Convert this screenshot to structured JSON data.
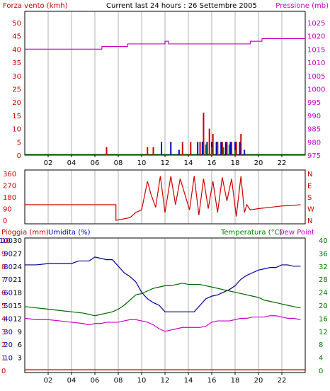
{
  "colors": {
    "background": "#ffffff",
    "frame": "#000000",
    "vertical_grid": "#d8d8d8",
    "wind_axis": "#cc0000",
    "pressure_axis": "#cc00cc",
    "wind_direction_axis": "#cc0000",
    "rain_axis": "#cc0000",
    "humidity_axis": "#0000cc",
    "temperature_axis": "#008000",
    "dewpoint_axis": "#cc00cc",
    "pressure_line": "#cc00cc",
    "wind_gust": "#cc0000",
    "wind_speed": "#0000cc",
    "wind_average": "#008000",
    "direction_line": "#cc0000",
    "humidity_line": "#000099",
    "temperature_line": "#006600",
    "dewpoint_line": "#cc00cc",
    "rain_line": "#cc0000"
  },
  "header": {
    "left_label": "Forza vento (kmh)",
    "center_title": "Current last 24 hours : 26 Settembre 2005",
    "right_label": "Pressione (mb)"
  },
  "panel3_labels": {
    "rain": "Pioggia (mm)",
    "humidity": "Umidita (%)",
    "temperature": "Temperatura (°C)",
    "dewpoint": "Dew Point"
  },
  "x_axis": {
    "hours": [
      "02",
      "04",
      "06",
      "08",
      "10",
      "12",
      "14",
      "16",
      "18",
      "20",
      "22"
    ],
    "range_hours": [
      0,
      24
    ]
  },
  "chart_data": [
    {
      "type": "line",
      "title": "Current last 24 hours : 26 Settembre 2005",
      "left_axis": {
        "label": "Forza vento (kmh)",
        "ticks": [
          "0",
          "5",
          "10",
          "15",
          "20",
          "25",
          "30",
          "35",
          "40",
          "45",
          "50"
        ],
        "range": [
          0,
          50
        ]
      },
      "right_axis": {
        "label": "Pressione (mb)",
        "ticks": [
          "975",
          "980",
          "985",
          "990",
          "995",
          "1000",
          "1005",
          "1010",
          "1015",
          "1020",
          "1025"
        ],
        "range": [
          975,
          1025
        ]
      },
      "series": [
        {
          "name": "Pressione (mb)",
          "axis": "right",
          "x": [
            0,
            4.5,
            6.3,
            6.6,
            8.5,
            8.8,
            11.8,
            12.0,
            12.3,
            19.0,
            19.3,
            20.0,
            20.3,
            24.0
          ],
          "y": [
            1015,
            1015,
            1015,
            1016,
            1016,
            1017,
            1017,
            1018,
            1017,
            1017,
            1018,
            1018,
            1019,
            1019
          ]
        },
        {
          "name": "gust",
          "axis": "left",
          "x": [
            7.0,
            10.5,
            11.0,
            13.5,
            14.2,
            15.0,
            15.3,
            15.8,
            16.1,
            16.5,
            16.9,
            17.3,
            17.7,
            18.1,
            18.5
          ],
          "y": [
            3,
            3,
            3,
            5,
            5,
            5,
            16,
            10,
            8,
            5,
            5,
            5,
            5,
            5,
            8
          ]
        },
        {
          "name": "speed",
          "axis": "left",
          "x": [
            11.7,
            12.5,
            13.2,
            14.8,
            15.2,
            15.6,
            16.0,
            16.4,
            16.8,
            17.2,
            17.6,
            18.0,
            18.4,
            18.8
          ],
          "y": [
            5,
            5,
            2,
            5,
            5,
            5,
            5,
            5,
            5,
            5,
            5,
            5,
            5,
            2
          ]
        },
        {
          "name": "average",
          "axis": "left",
          "x": [
            15.5,
            16.0,
            16.5,
            17.0,
            17.5,
            18.0
          ],
          "y": [
            4,
            3,
            4,
            3,
            4,
            2
          ]
        }
      ]
    },
    {
      "type": "line",
      "left_axis": {
        "ticks": [
          "0",
          "90",
          "180",
          "270",
          "360"
        ],
        "range": [
          0,
          360
        ]
      },
      "right_axis": {
        "ticks": [
          "N",
          "E",
          "S",
          "W",
          "N"
        ]
      },
      "series": [
        {
          "name": "direction",
          "x": [
            0,
            7.8,
            7.8,
            9.0,
            9.5,
            10.0,
            10.5,
            10.8,
            11.2,
            11.6,
            12.0,
            12.5,
            12.9,
            13.3,
            13.7,
            14.1,
            14.5,
            14.9,
            15.3,
            15.7,
            16.1,
            16.5,
            16.9,
            17.3,
            17.7,
            18.1,
            18.5,
            18.8,
            19.0,
            19.3,
            20.0,
            21.0,
            22.0,
            23.0,
            23.6
          ],
          "y": [
            120,
            120,
            0,
            20,
            60,
            80,
            300,
            200,
            100,
            340,
            60,
            340,
            120,
            320,
            200,
            80,
            340,
            40,
            320,
            90,
            300,
            60,
            330,
            150,
            320,
            30,
            340,
            60,
            120,
            80,
            90,
            100,
            110,
            115,
            120
          ]
        }
      ]
    },
    {
      "type": "line",
      "left_axis_rain": {
        "label": "Pioggia (mm)",
        "ticks": [
          "0",
          "1",
          "2",
          "3",
          "4",
          "5",
          "6",
          "7",
          "8",
          "9",
          "10"
        ],
        "range": [
          0,
          10
        ]
      },
      "left_axis_humidity": {
        "label": "Umidita (%)",
        "ticks": [
          "0",
          "10",
          "20",
          "30",
          "40",
          "50",
          "60",
          "70",
          "80",
          "90",
          "100"
        ],
        "range": [
          0,
          100
        ]
      },
      "left_axis_temp_mirror": {
        "ticks": [
          "0",
          "3",
          "6",
          "9",
          "12",
          "15",
          "18",
          "21",
          "24",
          "27",
          "30"
        ],
        "range": [
          0,
          30
        ]
      },
      "right_axis": {
        "label": "Temperatura (°C)",
        "ticks": [
          "0",
          "4",
          "8",
          "12",
          "16",
          "20",
          "24",
          "28",
          "32",
          "36",
          "40"
        ],
        "range": [
          0,
          40
        ]
      },
      "series": [
        {
          "name": "Umidita (%)",
          "axis": "humidity",
          "x": [
            0,
            1.0,
            2.0,
            3.0,
            4.0,
            4.6,
            5.0,
            5.5,
            6.0,
            6.5,
            7.0,
            7.5,
            8.0,
            8.5,
            9.0,
            9.5,
            10.0,
            10.5,
            11.0,
            11.5,
            12.0,
            12.5,
            13.0,
            13.5,
            14.0,
            14.5,
            15.0,
            15.5,
            16.0,
            16.5,
            17.0,
            17.5,
            18.0,
            18.5,
            19.0,
            19.5,
            20.0,
            20.5,
            21.0,
            21.5,
            22.0,
            22.5,
            23.0,
            23.6
          ],
          "y": [
            81,
            81,
            82,
            82,
            82,
            84,
            84,
            84,
            87,
            86,
            85,
            85,
            80,
            75,
            72,
            68,
            60,
            55,
            52,
            50,
            45,
            45,
            45,
            45,
            45,
            45,
            50,
            55,
            57,
            58,
            60,
            62,
            65,
            70,
            73,
            75,
            77,
            78,
            79,
            79,
            81,
            81,
            80,
            80
          ]
        },
        {
          "name": "Temperatura (°C)",
          "axis": "temperature",
          "x": [
            0,
            1.0,
            2.0,
            3.0,
            4.0,
            5.0,
            5.5,
            6.0,
            6.5,
            7.0,
            7.5,
            8.0,
            8.5,
            9.0,
            9.5,
            10.0,
            10.5,
            11.0,
            11.5,
            12.0,
            12.5,
            13.0,
            13.5,
            14.0,
            14.5,
            15.0,
            15.5,
            16.0,
            16.5,
            17.0,
            17.5,
            18.0,
            18.5,
            19.0,
            19.5,
            20.0,
            20.5,
            21.0,
            21.5,
            22.0,
            22.5,
            23.0,
            23.6
          ],
          "y": [
            19.6,
            19.2,
            18.8,
            18.4,
            18.0,
            17.6,
            17.2,
            16.8,
            17.2,
            17.6,
            18.0,
            18.8,
            20.0,
            21.6,
            23.2,
            23.6,
            24.4,
            25.2,
            25.6,
            26.0,
            26.0,
            26.4,
            26.8,
            26.4,
            26.4,
            26.4,
            26.0,
            25.6,
            25.2,
            24.8,
            24.4,
            24.0,
            23.6,
            23.2,
            22.8,
            22.4,
            21.6,
            21.2,
            20.8,
            20.4,
            20.0,
            19.6,
            19.2
          ]
        },
        {
          "name": "Dew Point",
          "axis": "temperature",
          "x": [
            0,
            1.0,
            2.0,
            3.0,
            4.0,
            5.0,
            5.5,
            6.0,
            6.5,
            7.0,
            7.5,
            8.0,
            8.5,
            9.0,
            9.5,
            10.0,
            10.5,
            11.0,
            11.5,
            12.0,
            12.5,
            13.0,
            13.5,
            14.0,
            14.5,
            15.0,
            15.5,
            16.0,
            16.5,
            17.0,
            17.5,
            18.0,
            18.5,
            19.0,
            19.5,
            20.0,
            20.5,
            21.0,
            21.5,
            22.0,
            22.5,
            23.0,
            23.6
          ],
          "y": [
            16.0,
            15.6,
            15.6,
            15.2,
            14.8,
            14.4,
            14.0,
            14.4,
            14.4,
            14.8,
            14.8,
            14.8,
            15.2,
            15.6,
            15.6,
            15.2,
            14.8,
            14.0,
            12.8,
            12.0,
            12.4,
            12.8,
            13.2,
            13.2,
            13.2,
            13.2,
            13.6,
            14.8,
            15.2,
            15.2,
            15.2,
            15.6,
            16.0,
            16.0,
            16.4,
            16.4,
            16.4,
            16.8,
            16.8,
            16.4,
            16.0,
            16.0,
            15.6
          ]
        },
        {
          "name": "Pioggia (mm)",
          "axis": "rain",
          "x": [
            0,
            24
          ],
          "y": [
            0,
            0
          ]
        }
      ]
    }
  ]
}
